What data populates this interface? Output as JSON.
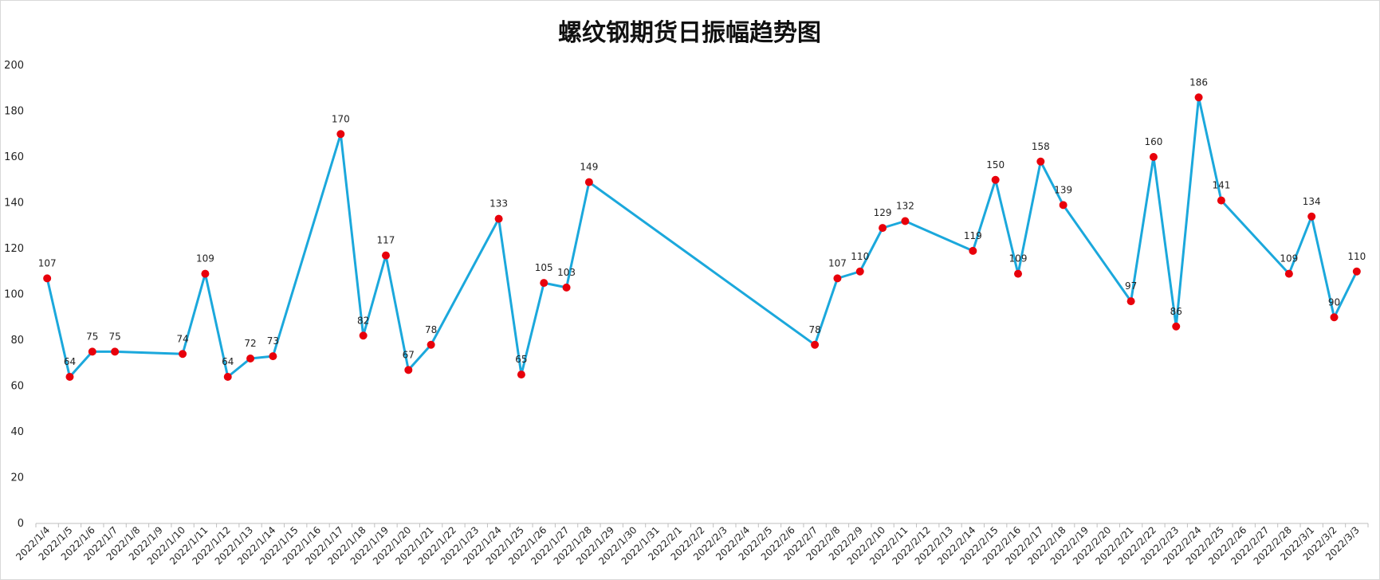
{
  "chart_data": {
    "type": "line",
    "title": "螺纹钢期货日振幅趋势图",
    "xlabel": "",
    "ylabel": "",
    "ylim": [
      0,
      200
    ],
    "yticks": [
      0,
      20,
      40,
      60,
      80,
      100,
      120,
      140,
      160,
      180,
      200
    ],
    "grid": false,
    "legend": "none",
    "line_color": "#1BA8DC",
    "marker_color": "#E8000B",
    "x": [
      "2022/1/4",
      "2022/1/5",
      "2022/1/6",
      "2022/1/7",
      "2022/1/8",
      "2022/1/9",
      "2022/1/10",
      "2022/1/11",
      "2022/1/12",
      "2022/1/13",
      "2022/1/14",
      "2022/1/15",
      "2022/1/16",
      "2022/1/17",
      "2022/1/18",
      "2022/1/19",
      "2022/1/20",
      "2022/1/21",
      "2022/1/22",
      "2022/1/23",
      "2022/1/24",
      "2022/1/25",
      "2022/1/26",
      "2022/1/27",
      "2022/1/28",
      "2022/1/29",
      "2022/1/30",
      "2022/1/31",
      "2022/2/1",
      "2022/2/2",
      "2022/2/3",
      "2022/2/4",
      "2022/2/5",
      "2022/2/6",
      "2022/2/7",
      "2022/2/8",
      "2022/2/9",
      "2022/2/10",
      "2022/2/11",
      "2022/2/12",
      "2022/2/13",
      "2022/2/14",
      "2022/2/15",
      "2022/2/16",
      "2022/2/17",
      "2022/2/18",
      "2022/2/19",
      "2022/2/20",
      "2022/2/21",
      "2022/2/22",
      "2022/2/23",
      "2022/2/24",
      "2022/2/25",
      "2022/2/26",
      "2022/2/27",
      "2022/2/28",
      "2022/3/1",
      "2022/3/2",
      "2022/3/3"
    ],
    "series": [
      {
        "points": [
          {
            "x": "2022/1/4",
            "y": 107
          },
          {
            "x": "2022/1/5",
            "y": 64
          },
          {
            "x": "2022/1/6",
            "y": 75
          },
          {
            "x": "2022/1/7",
            "y": 75
          },
          {
            "x": "2022/1/10",
            "y": 74
          },
          {
            "x": "2022/1/11",
            "y": 109
          },
          {
            "x": "2022/1/12",
            "y": 64
          },
          {
            "x": "2022/1/13",
            "y": 72
          },
          {
            "x": "2022/1/14",
            "y": 73
          },
          {
            "x": "2022/1/17",
            "y": 170
          },
          {
            "x": "2022/1/18",
            "y": 82
          },
          {
            "x": "2022/1/19",
            "y": 117
          },
          {
            "x": "2022/1/20",
            "y": 67
          },
          {
            "x": "2022/1/21",
            "y": 78
          },
          {
            "x": "2022/1/24",
            "y": 133
          },
          {
            "x": "2022/1/25",
            "y": 65
          },
          {
            "x": "2022/1/26",
            "y": 105
          },
          {
            "x": "2022/1/27",
            "y": 103
          },
          {
            "x": "2022/1/28",
            "y": 149
          },
          {
            "x": "2022/2/7",
            "y": 78
          },
          {
            "x": "2022/2/8",
            "y": 107
          },
          {
            "x": "2022/2/9",
            "y": 110
          },
          {
            "x": "2022/2/10",
            "y": 129
          },
          {
            "x": "2022/2/11",
            "y": 132
          },
          {
            "x": "2022/2/14",
            "y": 119
          },
          {
            "x": "2022/2/15",
            "y": 150
          },
          {
            "x": "2022/2/16",
            "y": 109
          },
          {
            "x": "2022/2/17",
            "y": 158
          },
          {
            "x": "2022/2/18",
            "y": 139
          },
          {
            "x": "2022/2/21",
            "y": 97
          },
          {
            "x": "2022/2/22",
            "y": 160
          },
          {
            "x": "2022/2/23",
            "y": 86
          },
          {
            "x": "2022/2/24",
            "y": 186
          },
          {
            "x": "2022/2/25",
            "y": 141
          },
          {
            "x": "2022/2/28",
            "y": 109
          },
          {
            "x": "2022/3/1",
            "y": 134
          },
          {
            "x": "2022/3/2",
            "y": 90
          },
          {
            "x": "2022/3/3",
            "y": 110
          }
        ]
      }
    ]
  }
}
